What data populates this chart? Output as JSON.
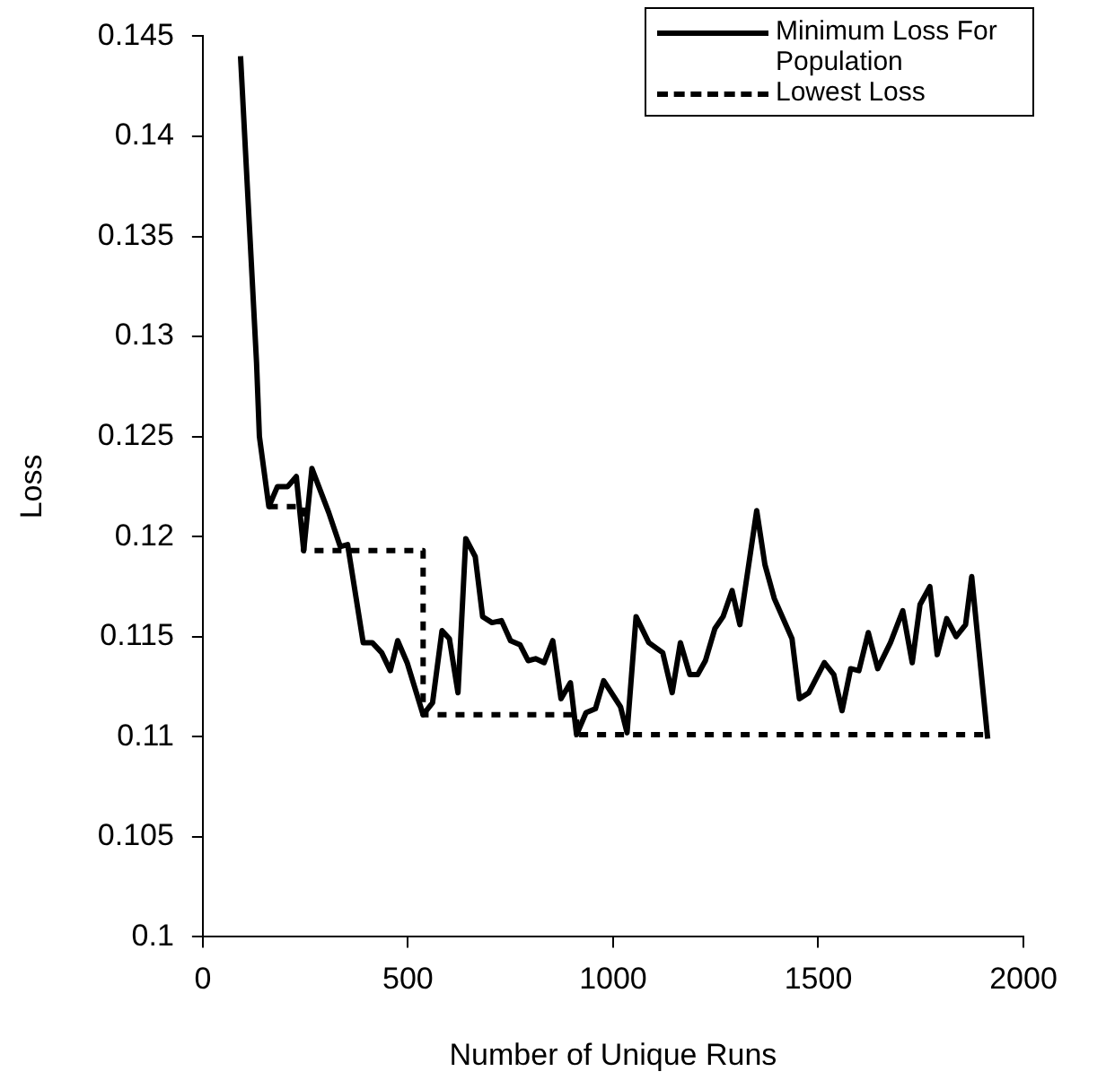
{
  "chart_data": {
    "type": "line",
    "xlabel": "Number of Unique Runs",
    "ylabel": "Loss",
    "xlim": [
      0,
      2000
    ],
    "xticks": [
      0,
      500,
      1000,
      1500,
      2000
    ],
    "ylim": [
      0.1,
      0.145
    ],
    "yticks": [
      0.1,
      0.105,
      0.11,
      0.115,
      0.12,
      0.125,
      0.13,
      0.135,
      0.14,
      0.145
    ],
    "grid": false,
    "legend": "top right",
    "marker": "none",
    "series": [
      {
        "name": "Minimum Loss For Population",
        "color": "#000000",
        "line_style": "solid",
        "x": [
          92,
          131,
          138,
          161,
          182,
          207,
          228,
          246,
          266,
          307,
          335,
          353,
          391,
          413,
          436,
          457,
          475,
          498,
          537,
          560,
          583,
          601,
          622,
          641,
          664,
          682,
          705,
          728,
          750,
          773,
          793,
          811,
          832,
          853,
          873,
          896,
          911,
          934,
          957,
          977,
          1018,
          1034,
          1056,
          1087,
          1121,
          1144,
          1164,
          1187,
          1206,
          1225,
          1248,
          1268,
          1290,
          1309,
          1350,
          1370,
          1393,
          1436,
          1454,
          1477,
          1515,
          1538,
          1558,
          1579,
          1599,
          1622,
          1645,
          1676,
          1706,
          1729,
          1748,
          1772,
          1790,
          1813,
          1836,
          1859,
          1874,
          1913
        ],
        "values": [
          0.144,
          0.1287,
          0.125,
          0.1215,
          0.1225,
          0.1225,
          0.123,
          0.1193,
          0.1234,
          0.1212,
          0.1195,
          0.1196,
          0.1147,
          0.1147,
          0.1142,
          0.1133,
          0.1148,
          0.1137,
          0.1111,
          0.1117,
          0.1153,
          0.1149,
          0.1122,
          0.1199,
          0.119,
          0.116,
          0.1157,
          0.1158,
          0.1148,
          0.1146,
          0.1138,
          0.1139,
          0.1137,
          0.1148,
          0.1119,
          0.1127,
          0.1101,
          0.1112,
          0.1114,
          0.1128,
          0.1115,
          0.1102,
          0.116,
          0.1147,
          0.1142,
          0.1122,
          0.1147,
          0.1131,
          0.1131,
          0.1138,
          0.1154,
          0.116,
          0.1173,
          0.1156,
          0.1213,
          0.1186,
          0.1169,
          0.1149,
          0.1119,
          0.1122,
          0.1137,
          0.1131,
          0.1113,
          0.1134,
          0.1133,
          0.1152,
          0.1134,
          0.1147,
          0.1163,
          0.1137,
          0.1166,
          0.1175,
          0.1141,
          0.1159,
          0.115,
          0.1156,
          0.118,
          0.1099
        ]
      },
      {
        "name": "Lowest Loss",
        "type": "step",
        "color": "#000000",
        "line_style": "dashed",
        "x": [
          161,
          246,
          537,
          911,
          1913
        ],
        "values": [
          0.1215,
          0.1193,
          0.1111,
          0.1101,
          0.1099
        ]
      }
    ]
  }
}
